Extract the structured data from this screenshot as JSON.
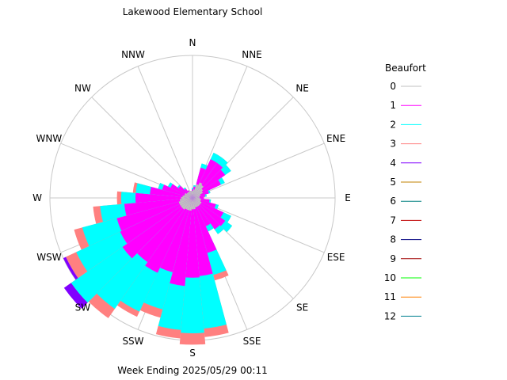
{
  "chart_data": {
    "type": "wind_rose",
    "title": "Lakewood Elementary School",
    "footer": "Week Ending 2025/05/29 00:11",
    "directions": [
      "N",
      "NNE",
      "NE",
      "ENE",
      "E",
      "ESE",
      "SE",
      "SSE",
      "S",
      "SSW",
      "SW",
      "WSW",
      "W",
      "WNW",
      "NW",
      "NNW"
    ],
    "legend": {
      "title": "Beaufort",
      "entries": [
        {
          "label": "0",
          "color": "#c0c0c0"
        },
        {
          "label": "1",
          "color": "#ff00ff"
        },
        {
          "label": "2",
          "color": "#00ffff"
        },
        {
          "label": "3",
          "color": "#ff8080"
        },
        {
          "label": "4",
          "color": "#8000ff"
        },
        {
          "label": "5",
          "color": "#c08000"
        },
        {
          "label": "6",
          "color": "#008080"
        },
        {
          "label": "7",
          "color": "#c00000"
        },
        {
          "label": "8",
          "color": "#000080"
        },
        {
          "label": "9",
          "color": "#a00000"
        },
        {
          "label": "10",
          "color": "#00ff00"
        },
        {
          "label": "11",
          "color": "#ff8000"
        },
        {
          "label": "12",
          "color": "#008090"
        }
      ]
    },
    "sector_width_deg": 10,
    "series_note": "cumulative radius per 10-degree sector, fraction of outer ring",
    "sectors": [
      {
        "deg": 0,
        "b0": 0.05,
        "b1": 0.06,
        "b2": 0.07,
        "b3": 0.07
      },
      {
        "deg": 10,
        "b0": 0.06,
        "b1": 0.08,
        "b2": 0.09,
        "b3": 0.09
      },
      {
        "deg": 20,
        "b0": 0.1,
        "b1": 0.22,
        "b2": 0.25,
        "b3": 0.25
      },
      {
        "deg": 30,
        "b0": 0.12,
        "b1": 0.3,
        "b2": 0.35,
        "b3": 0.35
      },
      {
        "deg": 40,
        "b0": 0.11,
        "b1": 0.3,
        "b2": 0.35,
        "b3": 0.35
      },
      {
        "deg": 50,
        "b0": 0.09,
        "b1": 0.28,
        "b2": 0.33,
        "b3": 0.33
      },
      {
        "deg": 60,
        "b0": 0.08,
        "b1": 0.22,
        "b2": 0.25,
        "b3": 0.25
      },
      {
        "deg": 70,
        "b0": 0.06,
        "b1": 0.12,
        "b2": 0.13,
        "b3": 0.13
      },
      {
        "deg": 80,
        "b0": 0.05,
        "b1": 0.09,
        "b2": 0.1,
        "b3": 0.1
      },
      {
        "deg": 90,
        "b0": 0.05,
        "b1": 0.08,
        "b2": 0.08,
        "b3": 0.08
      },
      {
        "deg": 100,
        "b0": 0.06,
        "b1": 0.12,
        "b2": 0.13,
        "b3": 0.13
      },
      {
        "deg": 110,
        "b0": 0.06,
        "b1": 0.17,
        "b2": 0.19,
        "b3": 0.19
      },
      {
        "deg": 120,
        "b0": 0.07,
        "b1": 0.24,
        "b2": 0.3,
        "b3": 0.3
      },
      {
        "deg": 130,
        "b0": 0.07,
        "b1": 0.28,
        "b2": 0.34,
        "b3": 0.34
      },
      {
        "deg": 140,
        "b0": 0.07,
        "b1": 0.27,
        "b2": 0.31,
        "b3": 0.31
      },
      {
        "deg": 150,
        "b0": 0.07,
        "b1": 0.22,
        "b2": 0.26,
        "b3": 0.26
      },
      {
        "deg": 160,
        "b0": 0.07,
        "b1": 0.4,
        "b2": 0.56,
        "b3": 0.6
      },
      {
        "deg": 170,
        "b0": 0.08,
        "b1": 0.55,
        "b2": 0.92,
        "b3": 0.98
      },
      {
        "deg": 180,
        "b0": 0.08,
        "b1": 0.56,
        "b2": 0.95,
        "b3": 1.03
      },
      {
        "deg": 190,
        "b0": 0.09,
        "b1": 0.62,
        "b2": 0.93,
        "b3": 0.99
      },
      {
        "deg": 200,
        "b0": 0.09,
        "b1": 0.54,
        "b2": 0.81,
        "b3": 0.87
      },
      {
        "deg": 210,
        "b0": 0.09,
        "b1": 0.58,
        "b2": 0.88,
        "b3": 0.92
      },
      {
        "deg": 220,
        "b0": 0.1,
        "b1": 0.55,
        "b2": 0.95,
        "b3": 1.03
      },
      {
        "deg": 230,
        "b0": 0.1,
        "b1": 0.6,
        "b2": 1.04,
        "b3": 1.08
      },
      {
        "deg": 240,
        "b0": 0.1,
        "b1": 0.56,
        "b2": 0.9,
        "b3": 0.98
      },
      {
        "deg": 250,
        "b0": 0.1,
        "b1": 0.55,
        "b2": 0.8,
        "b3": 0.86
      },
      {
        "deg": 260,
        "b0": 0.09,
        "b1": 0.48,
        "b2": 0.65,
        "b3": 0.7
      },
      {
        "deg": 270,
        "b0": 0.08,
        "b1": 0.4,
        "b2": 0.5,
        "b3": 0.53
      },
      {
        "deg": 280,
        "b0": 0.07,
        "b1": 0.3,
        "b2": 0.4,
        "b3": 0.42
      },
      {
        "deg": 290,
        "b0": 0.06,
        "b1": 0.22,
        "b2": 0.25,
        "b3": 0.25
      },
      {
        "deg": 300,
        "b0": 0.06,
        "b1": 0.17,
        "b2": 0.19,
        "b3": 0.19
      },
      {
        "deg": 310,
        "b0": 0.05,
        "b1": 0.12,
        "b2": 0.13,
        "b3": 0.13
      },
      {
        "deg": 320,
        "b0": 0.05,
        "b1": 0.08,
        "b2": 0.09,
        "b3": 0.09
      },
      {
        "deg": 330,
        "b0": 0.05,
        "b1": 0.06,
        "b2": 0.06,
        "b3": 0.06
      },
      {
        "deg": 340,
        "b0": 0.05,
        "b1": 0.05,
        "b2": 0.05,
        "b3": 0.05
      },
      {
        "deg": 350,
        "b0": 0.05,
        "b1": 0.05,
        "b2": 0.05,
        "b3": 0.05
      }
    ],
    "beaufort4_sectors": [
      {
        "deg": 230,
        "r0": 1.04,
        "r1": 1.1
      },
      {
        "deg": 240,
        "r0": 0.98,
        "r1": 1.0
      }
    ],
    "grid": true
  }
}
